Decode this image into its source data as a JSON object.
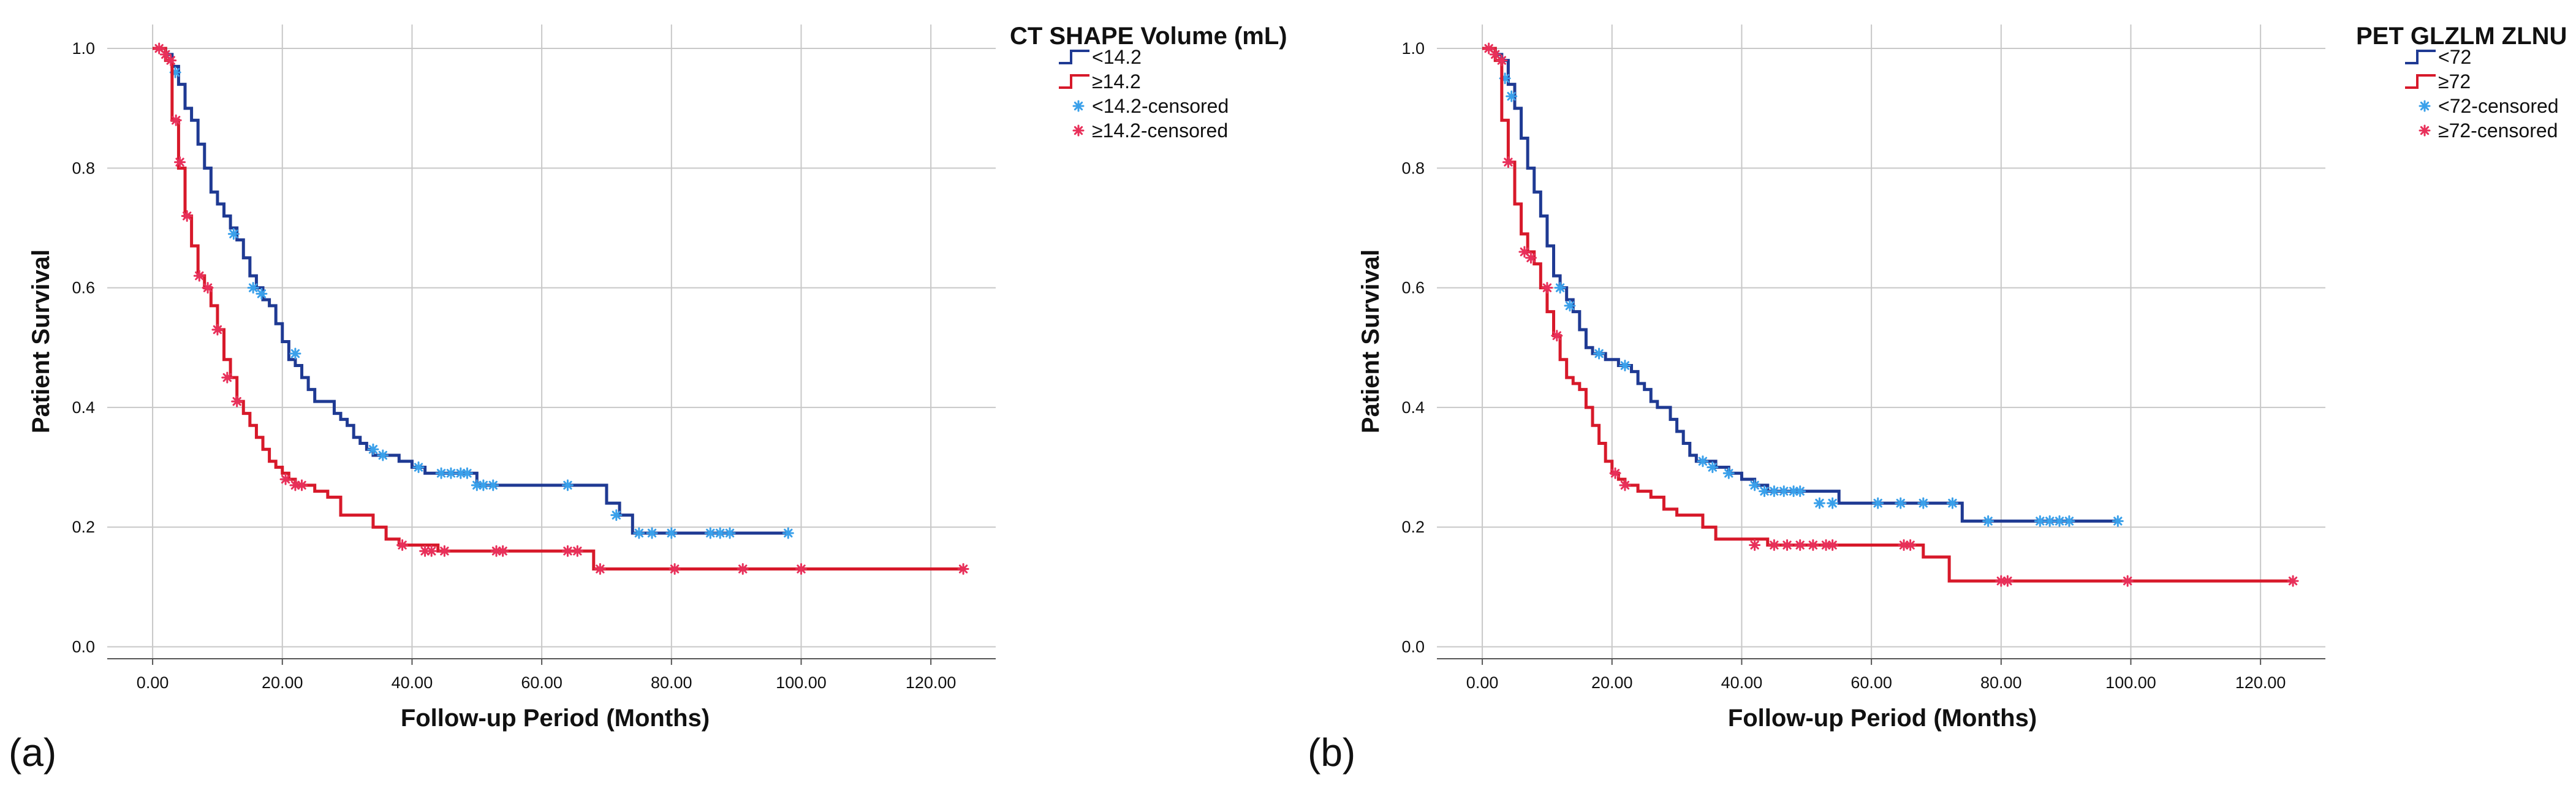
{
  "colors": {
    "group_low": "#1f3a93",
    "group_high": "#d7192a",
    "censor_low": "#3aa0ea",
    "censor_high": "#e8305a",
    "grid": "#c8c8c8",
    "axis": "#555555"
  },
  "chart_data": [
    {
      "type": "line",
      "subtype": "kaplan-meier",
      "panel_label": "(a)",
      "xlabel": "Follow-up Period (Months)",
      "ylabel": "Patient Survival",
      "xlim": [
        -7,
        130
      ],
      "ylim": [
        -0.02,
        1.04
      ],
      "xticks": [
        0,
        20,
        40,
        60,
        80,
        100,
        120
      ],
      "xtick_labels": [
        "0.00",
        "20.00",
        "40.00",
        "60.00",
        "80.00",
        "100.00",
        "120.00"
      ],
      "yticks": [
        0,
        0.2,
        0.4,
        0.6,
        0.8,
        1.0
      ],
      "ytick_labels": [
        "0.0",
        "0.2",
        "0.4",
        "0.6",
        "0.8",
        "1.0"
      ],
      "grid": true,
      "legend_position": "top-right outside",
      "legend_title": "CT SHAPE Volume (mL)",
      "series": [
        {
          "name": "<14.2",
          "censored_label": "<14.2-censored",
          "color_key": "group_low",
          "censor_color_key": "censor_low",
          "x": [
            0,
            1,
            2,
            3,
            4,
            5,
            6,
            7,
            8,
            9,
            10,
            11,
            12,
            13,
            14,
            15,
            16,
            17,
            18,
            19,
            20,
            21,
            22,
            23,
            24,
            25,
            26,
            27,
            28,
            29,
            30,
            31,
            32,
            33,
            34,
            36,
            38,
            40,
            42,
            44,
            46,
            48,
            50,
            52,
            54,
            56,
            58,
            60,
            62,
            64,
            66,
            68,
            70,
            72,
            74,
            76,
            78,
            80,
            84,
            88,
            92,
            98
          ],
          "y": [
            1.0,
            1.0,
            0.99,
            0.97,
            0.94,
            0.9,
            0.88,
            0.84,
            0.8,
            0.76,
            0.74,
            0.72,
            0.7,
            0.68,
            0.65,
            0.62,
            0.6,
            0.58,
            0.57,
            0.54,
            0.51,
            0.48,
            0.47,
            0.45,
            0.43,
            0.41,
            0.41,
            0.41,
            0.39,
            0.38,
            0.37,
            0.35,
            0.34,
            0.33,
            0.32,
            0.32,
            0.31,
            0.3,
            0.29,
            0.29,
            0.29,
            0.29,
            0.27,
            0.27,
            0.27,
            0.27,
            0.27,
            0.27,
            0.27,
            0.27,
            0.27,
            0.27,
            0.24,
            0.22,
            0.19,
            0.19,
            0.19,
            0.19,
            0.19,
            0.19,
            0.19,
            0.19
          ],
          "censored_x": [
            3.5,
            12.5,
            15.5,
            16.8,
            22.0,
            34.0,
            35.5,
            41.0,
            44.5,
            46.0,
            47.5,
            48.5,
            50.0,
            51.0,
            52.5,
            64.0,
            71.5,
            75.0,
            77.0,
            80.0,
            86.0,
            87.5,
            89.0,
            98.0
          ],
          "censored_y": [
            0.96,
            0.69,
            0.6,
            0.59,
            0.49,
            0.33,
            0.32,
            0.3,
            0.29,
            0.29,
            0.29,
            0.29,
            0.27,
            0.27,
            0.27,
            0.27,
            0.22,
            0.19,
            0.19,
            0.19,
            0.19,
            0.19,
            0.19,
            0.19
          ]
        },
        {
          "name": "≥14.2",
          "censored_label": "≥14.2-censored",
          "color_key": "group_high",
          "censor_color_key": "censor_high",
          "x": [
            0,
            1,
            2,
            3,
            4,
            5,
            6,
            7,
            8,
            9,
            10,
            11,
            12,
            13,
            14,
            15,
            16,
            17,
            18,
            19,
            20,
            21,
            22,
            23,
            24,
            25,
            26,
            27,
            28,
            29,
            30,
            32,
            34,
            36,
            38,
            40,
            44,
            48,
            52,
            56,
            60,
            64,
            66,
            68,
            72,
            80,
            90,
            100,
            110,
            125
          ],
          "y": [
            1.0,
            1.0,
            0.98,
            0.88,
            0.8,
            0.72,
            0.67,
            0.62,
            0.6,
            0.57,
            0.53,
            0.48,
            0.45,
            0.41,
            0.39,
            0.37,
            0.35,
            0.33,
            0.31,
            0.3,
            0.29,
            0.28,
            0.27,
            0.27,
            0.27,
            0.26,
            0.26,
            0.25,
            0.25,
            0.22,
            0.22,
            0.22,
            0.2,
            0.18,
            0.17,
            0.17,
            0.16,
            0.16,
            0.16,
            0.16,
            0.16,
            0.16,
            0.16,
            0.13,
            0.13,
            0.13,
            0.13,
            0.13,
            0.13,
            0.13
          ],
          "censored_x": [
            1.0,
            2.0,
            2.8,
            3.6,
            4.2,
            5.3,
            7.2,
            8.5,
            10.0,
            11.5,
            13.0,
            20.5,
            22.0,
            23.0,
            38.5,
            42.0,
            43.0,
            45.0,
            53.0,
            54.0,
            64.0,
            65.5,
            69.0,
            80.5,
            91.0,
            100.0,
            125.0
          ],
          "censored_y": [
            1.0,
            0.99,
            0.98,
            0.88,
            0.81,
            0.72,
            0.62,
            0.6,
            0.53,
            0.45,
            0.41,
            0.28,
            0.27,
            0.27,
            0.17,
            0.16,
            0.16,
            0.16,
            0.16,
            0.16,
            0.16,
            0.16,
            0.13,
            0.13,
            0.13,
            0.13,
            0.13
          ]
        }
      ]
    },
    {
      "type": "line",
      "subtype": "kaplan-meier",
      "panel_label": "(b)",
      "xlabel": "Follow-up Period (Months)",
      "ylabel": "Patient Survival",
      "xlim": [
        -7,
        130
      ],
      "ylim": [
        -0.02,
        1.04
      ],
      "xticks": [
        0,
        20,
        40,
        60,
        80,
        100,
        120
      ],
      "xtick_labels": [
        "0.00",
        "20.00",
        "40.00",
        "60.00",
        "80.00",
        "100.00",
        "120.00"
      ],
      "yticks": [
        0,
        0.2,
        0.4,
        0.6,
        0.8,
        1.0
      ],
      "ytick_labels": [
        "0.0",
        "0.2",
        "0.4",
        "0.6",
        "0.8",
        "1.0"
      ],
      "grid": true,
      "legend_position": "top-right outside",
      "legend_title": "PET GLZLM ZLNU",
      "series": [
        {
          "name": "<72",
          "censored_label": "<72-censored",
          "color_key": "group_low",
          "censor_color_key": "censor_low",
          "x": [
            0,
            1,
            2,
            3,
            4,
            5,
            6,
            7,
            8,
            9,
            10,
            11,
            12,
            13,
            14,
            15,
            16,
            17,
            18,
            19,
            20,
            21,
            22,
            23,
            24,
            25,
            26,
            27,
            28,
            29,
            30,
            31,
            32,
            33,
            34,
            36,
            38,
            40,
            42,
            44,
            46,
            48,
            50,
            55,
            60,
            65,
            70,
            72,
            74,
            78,
            85,
            90,
            98
          ],
          "y": [
            1.0,
            1.0,
            0.99,
            0.98,
            0.94,
            0.9,
            0.85,
            0.8,
            0.76,
            0.72,
            0.67,
            0.62,
            0.6,
            0.58,
            0.56,
            0.53,
            0.5,
            0.49,
            0.49,
            0.48,
            0.48,
            0.47,
            0.47,
            0.46,
            0.44,
            0.43,
            0.41,
            0.4,
            0.4,
            0.38,
            0.36,
            0.34,
            0.32,
            0.31,
            0.31,
            0.3,
            0.29,
            0.28,
            0.27,
            0.26,
            0.26,
            0.26,
            0.26,
            0.24,
            0.24,
            0.24,
            0.24,
            0.24,
            0.21,
            0.21,
            0.21,
            0.21,
            0.21
          ],
          "censored_x": [
            3.5,
            4.5,
            12.0,
            13.5,
            18.0,
            22.0,
            34.0,
            35.5,
            38.0,
            42.0,
            43.5,
            45.0,
            46.5,
            48.0,
            49.0,
            52.0,
            54.0,
            61.0,
            64.5,
            68.0,
            72.5,
            78.0,
            86.0,
            87.5,
            89.0,
            90.5,
            98.0
          ],
          "censored_y": [
            0.95,
            0.92,
            0.6,
            0.57,
            0.49,
            0.47,
            0.31,
            0.3,
            0.29,
            0.27,
            0.26,
            0.26,
            0.26,
            0.26,
            0.26,
            0.24,
            0.24,
            0.24,
            0.24,
            0.24,
            0.24,
            0.21,
            0.21,
            0.21,
            0.21,
            0.21,
            0.21
          ]
        },
        {
          "name": "≥72",
          "censored_label": "≥72-censored",
          "color_key": "group_high",
          "censor_color_key": "censor_high",
          "x": [
            0,
            1,
            2,
            3,
            4,
            5,
            6,
            7,
            8,
            9,
            10,
            11,
            12,
            13,
            14,
            15,
            16,
            17,
            18,
            19,
            20,
            21,
            22,
            23,
            24,
            26,
            28,
            30,
            32,
            34,
            36,
            40,
            44,
            48,
            52,
            56,
            60,
            66,
            68,
            72,
            80,
            90,
            100,
            110,
            125
          ],
          "y": [
            1.0,
            1.0,
            0.98,
            0.88,
            0.81,
            0.74,
            0.69,
            0.66,
            0.64,
            0.6,
            0.56,
            0.52,
            0.48,
            0.45,
            0.44,
            0.43,
            0.4,
            0.37,
            0.34,
            0.31,
            0.29,
            0.28,
            0.27,
            0.27,
            0.26,
            0.25,
            0.23,
            0.22,
            0.22,
            0.2,
            0.18,
            0.18,
            0.17,
            0.17,
            0.17,
            0.17,
            0.17,
            0.17,
            0.15,
            0.11,
            0.11,
            0.11,
            0.11,
            0.11,
            0.11
          ],
          "censored_x": [
            1.0,
            2.0,
            3.0,
            4.0,
            6.5,
            7.5,
            10.0,
            11.5,
            20.5,
            22.0,
            42.0,
            45.0,
            47.0,
            49.0,
            51.0,
            53.0,
            54.0,
            65.0,
            66.0,
            80.0,
            81.0,
            99.5,
            125.0
          ],
          "censored_y": [
            1.0,
            0.99,
            0.98,
            0.81,
            0.66,
            0.65,
            0.6,
            0.52,
            0.29,
            0.27,
            0.17,
            0.17,
            0.17,
            0.17,
            0.17,
            0.17,
            0.17,
            0.17,
            0.17,
            0.11,
            0.11,
            0.11,
            0.11
          ]
        }
      ]
    }
  ]
}
